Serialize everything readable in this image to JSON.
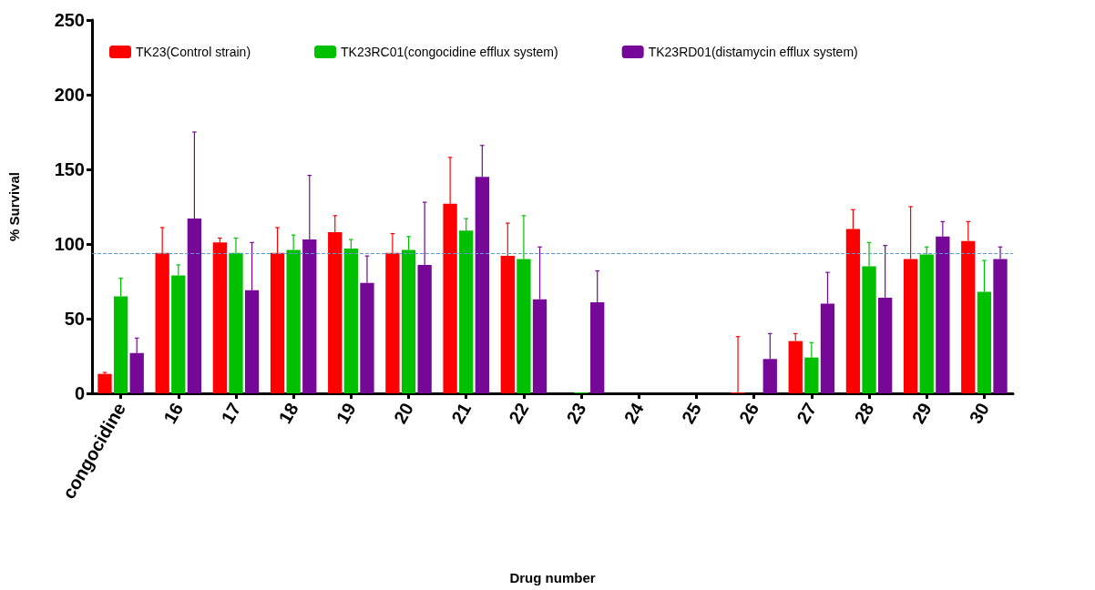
{
  "chart_data": {
    "type": "bar",
    "xlabel": "Drug number",
    "ylabel": "% Survival",
    "categories": [
      "congocidine",
      "16",
      "17",
      "18",
      "19",
      "20",
      "21",
      "22",
      "23",
      "24",
      "25",
      "26",
      "27",
      "28",
      "29",
      "30"
    ],
    "series": [
      {
        "name": "TK23(Control strain)",
        "color": "#ff0000",
        "values": [
          13,
          94,
          101,
          94,
          108,
          94,
          127,
          92,
          null,
          null,
          null,
          0,
          35,
          110,
          90,
          102
        ],
        "errors": [
          [
            13,
            14
          ],
          [
            94,
            111
          ],
          [
            101,
            104
          ],
          [
            94,
            111
          ],
          [
            108,
            119
          ],
          [
            94,
            107
          ],
          [
            127,
            158
          ],
          [
            92,
            114
          ],
          null,
          null,
          null,
          [
            0,
            38
          ],
          [
            35,
            40
          ],
          [
            110,
            123
          ],
          [
            90,
            125
          ],
          [
            102,
            115
          ]
        ]
      },
      {
        "name": "TK23RC01(congocidine efflux system)",
        "color": "#00c000",
        "values": [
          65,
          79,
          94,
          96,
          97,
          96,
          109,
          90,
          0,
          null,
          null,
          null,
          24,
          85,
          93,
          68
        ],
        "errors": [
          [
            65,
            77
          ],
          [
            79,
            86
          ],
          [
            94,
            104
          ],
          [
            96,
            106
          ],
          [
            97,
            103
          ],
          [
            96,
            105
          ],
          [
            109,
            117
          ],
          [
            90,
            119
          ],
          null,
          null,
          null,
          null,
          [
            24,
            34
          ],
          [
            85,
            101
          ],
          [
            93,
            98
          ],
          [
            68,
            89
          ]
        ]
      },
      {
        "name": "TK23RD01(distamycin efflux system)",
        "color": "#760898",
        "values": [
          27,
          117,
          69,
          103,
          74,
          86,
          145,
          63,
          61,
          null,
          null,
          23,
          60,
          64,
          105,
          90
        ],
        "errors": [
          [
            27,
            37
          ],
          [
            117,
            175
          ],
          [
            69,
            101
          ],
          [
            103,
            146
          ],
          [
            74,
            92
          ],
          [
            86,
            128
          ],
          [
            145,
            166
          ],
          [
            63,
            98
          ],
          [
            61,
            82
          ],
          null,
          null,
          [
            23,
            40
          ],
          [
            60,
            81
          ],
          [
            64,
            99
          ],
          [
            105,
            115
          ],
          [
            90,
            98
          ]
        ]
      }
    ],
    "ylim": [
      0,
      250
    ],
    "yticks": [
      0,
      50,
      100,
      150,
      200,
      250
    ],
    "grid": false,
    "legend": "top left",
    "ref_lines": [
      {
        "axis": "y",
        "value": 94,
        "color": "#5b9bd5",
        "line_style": "dashed"
      }
    ]
  }
}
